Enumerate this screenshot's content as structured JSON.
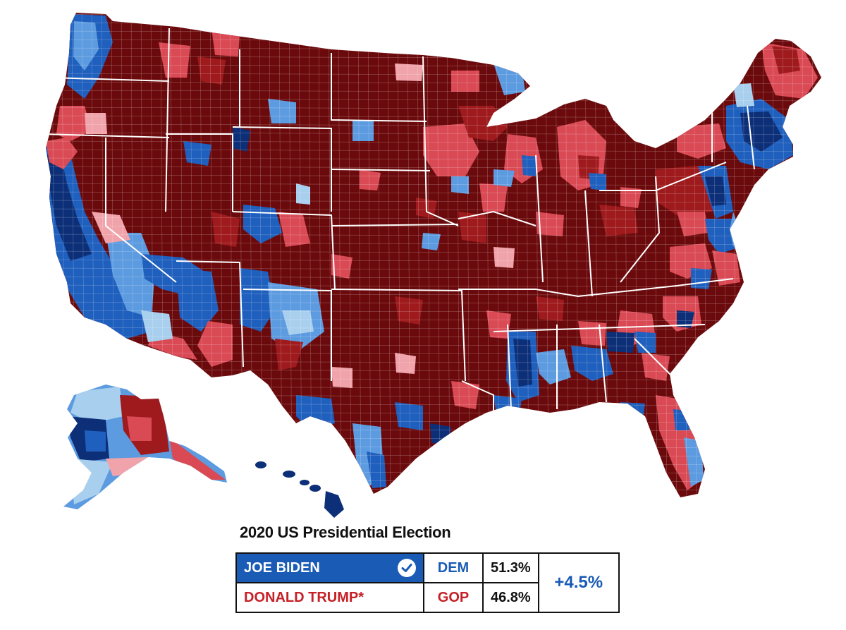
{
  "map": {
    "colors": {
      "gop_safe": "#6b0a0c",
      "gop_likely": "#9e1a1d",
      "gop_lean": "#d94a55",
      "gop_tilt": "#f0a3aa",
      "dem_tilt": "#a9cfee",
      "dem_lean": "#5d9be0",
      "dem_likely": "#1f5fbd",
      "dem_safe": "#0c2f78",
      "border": "#ffffff"
    },
    "regions": [
      {
        "name": "contiguous-us",
        "party": "gop_safe"
      },
      {
        "name": "alaska",
        "party": "dem_tilt"
      },
      {
        "name": "hawaii",
        "party": "dem_safe"
      }
    ]
  },
  "legend": {
    "title": "2020 US Presidential Election",
    "candidates": [
      {
        "name": "JOE BIDEN",
        "party": "DEM",
        "pct": "51.3%",
        "winner": true
      },
      {
        "name": "DONALD TRUMP*",
        "party": "GOP",
        "pct": "46.8%",
        "winner": false
      }
    ],
    "margin": "+4.5%",
    "icons": {
      "winner": "check-circle-icon"
    }
  }
}
